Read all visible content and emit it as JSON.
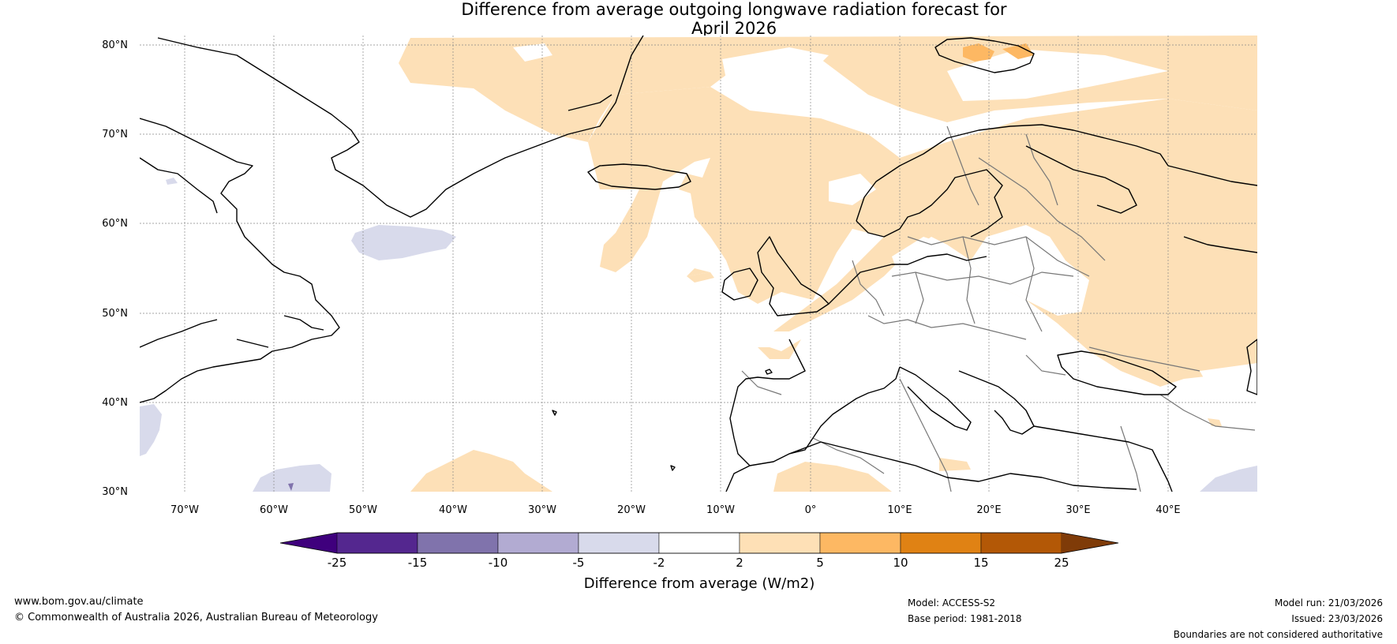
{
  "title": {
    "line1": "Difference from average outgoing longwave radiation forecast for",
    "line2": "April 2026"
  },
  "map": {
    "lat_labels": [
      "80°N",
      "70°N",
      "60°N",
      "50°N",
      "40°N",
      "30°N"
    ],
    "lon_labels": [
      "70°W",
      "60°W",
      "50°W",
      "40°W",
      "30°W",
      "20°W",
      "10°W",
      "0°",
      "10°E",
      "20°E",
      "30°E",
      "40°E"
    ],
    "extent": {
      "lon_min": -75,
      "lon_max": 50,
      "lat_min": 30,
      "lat_max": 81
    }
  },
  "colorbar": {
    "ticks": [
      "-25",
      "-15",
      "-10",
      "-5",
      "-2",
      "2",
      "5",
      "10",
      "15",
      "25"
    ],
    "colors": [
      "#3f007d",
      "#54278f",
      "#8073ac",
      "#b2abd2",
      "#d8daeb",
      "#ffffff",
      "#fee0b6",
      "#fdb863",
      "#e08214",
      "#b35806",
      "#7f3b08"
    ],
    "label": "Difference from average (W/m2)"
  },
  "footer": {
    "website": "www.bom.gov.au/climate",
    "copyright": "© Commonwealth of Australia 2026, Australian Bureau of Meteorology",
    "model": "Model: ACCESS-S2",
    "base_period": "Base period: 1981-2018",
    "model_run": "Model run: 21/03/2026",
    "issued": "Issued: 23/03/2026",
    "disclaimer": "Boundaries are not considered authoritative"
  }
}
